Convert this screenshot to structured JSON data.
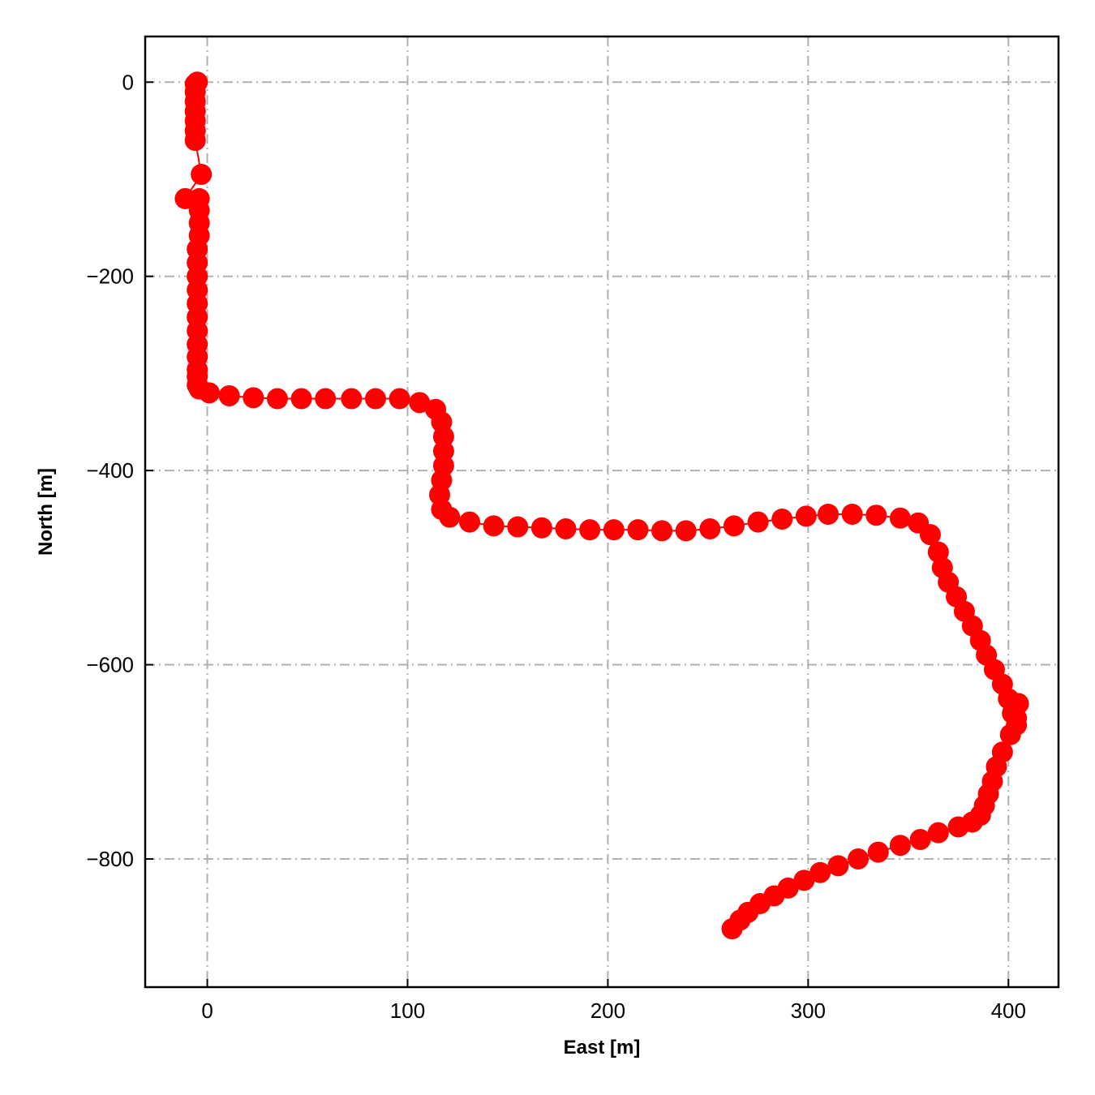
{
  "chart_data": {
    "type": "scatter",
    "title": "",
    "xlabel": "East [m]",
    "ylabel": "North [m]",
    "xlim": [
      -31,
      425
    ],
    "ylim": [
      -932,
      47
    ],
    "xticks": [
      0,
      100,
      200,
      300,
      400
    ],
    "yticks": [
      0,
      -200,
      -400,
      -600,
      -800
    ],
    "xtick_labels": [
      "0",
      "100",
      "200",
      "300",
      "400"
    ],
    "ytick_labels": [
      "0",
      "−200",
      "−400",
      "−600",
      "−800"
    ],
    "grid": true,
    "legend": "none",
    "color": "#ff0000",
    "series": [
      {
        "marker": "circle",
        "line": true,
        "x": [
          -5,
          -6,
          -6,
          -6,
          -6,
          -6,
          -6,
          -6,
          -3,
          -11,
          -4,
          -4,
          -4,
          -4,
          -5,
          -5,
          -5,
          -5,
          -5,
          -5,
          -5,
          -5,
          -5,
          -5,
          -5,
          -5,
          -4,
          1,
          11,
          23,
          35,
          47,
          59,
          72,
          84,
          96,
          106,
          114,
          117,
          118,
          118,
          118,
          117,
          116,
          117,
          121,
          131,
          143,
          155,
          167,
          179,
          191,
          203,
          215,
          227,
          239,
          251,
          263,
          275,
          287,
          299,
          310,
          322,
          334,
          346,
          355,
          361,
          365,
          367,
          370,
          374,
          378,
          382,
          386,
          389,
          393,
          397,
          400,
          402,
          404,
          405,
          404,
          401,
          397,
          394,
          392,
          390,
          388,
          386,
          382,
          375,
          365,
          356,
          346,
          335,
          325,
          315,
          306,
          298,
          290,
          283,
          276,
          270,
          266,
          262
        ],
        "y": [
          0,
          -2,
          -10,
          -20,
          -30,
          -40,
          -50,
          -60,
          -95,
          -120,
          -120,
          -132,
          -145,
          -158,
          -172,
          -186,
          -200,
          -214,
          -228,
          -242,
          -256,
          -270,
          -283,
          -296,
          -303,
          -312,
          -316,
          -320,
          -323,
          -325,
          -326,
          -326,
          -326,
          -326,
          -326,
          -326,
          -330,
          -337,
          -350,
          -365,
          -380,
          -395,
          -410,
          -425,
          -440,
          -448,
          -453,
          -457,
          -458,
          -459,
          -460,
          -461,
          -461,
          -461,
          -462,
          -462,
          -460,
          -457,
          -453,
          -450,
          -447,
          -445,
          -445,
          -446,
          -449,
          -454,
          -466,
          -484,
          -500,
          -515,
          -530,
          -545,
          -560,
          -575,
          -590,
          -605,
          -620,
          -635,
          -650,
          -662,
          -640,
          -655,
          -672,
          -690,
          -705,
          -720,
          -733,
          -745,
          -755,
          -762,
          -767,
          -773,
          -780,
          -786,
          -793,
          -800,
          -807,
          -814,
          -822,
          -830,
          -838,
          -846,
          -855,
          -863,
          -872
        ]
      }
    ]
  }
}
